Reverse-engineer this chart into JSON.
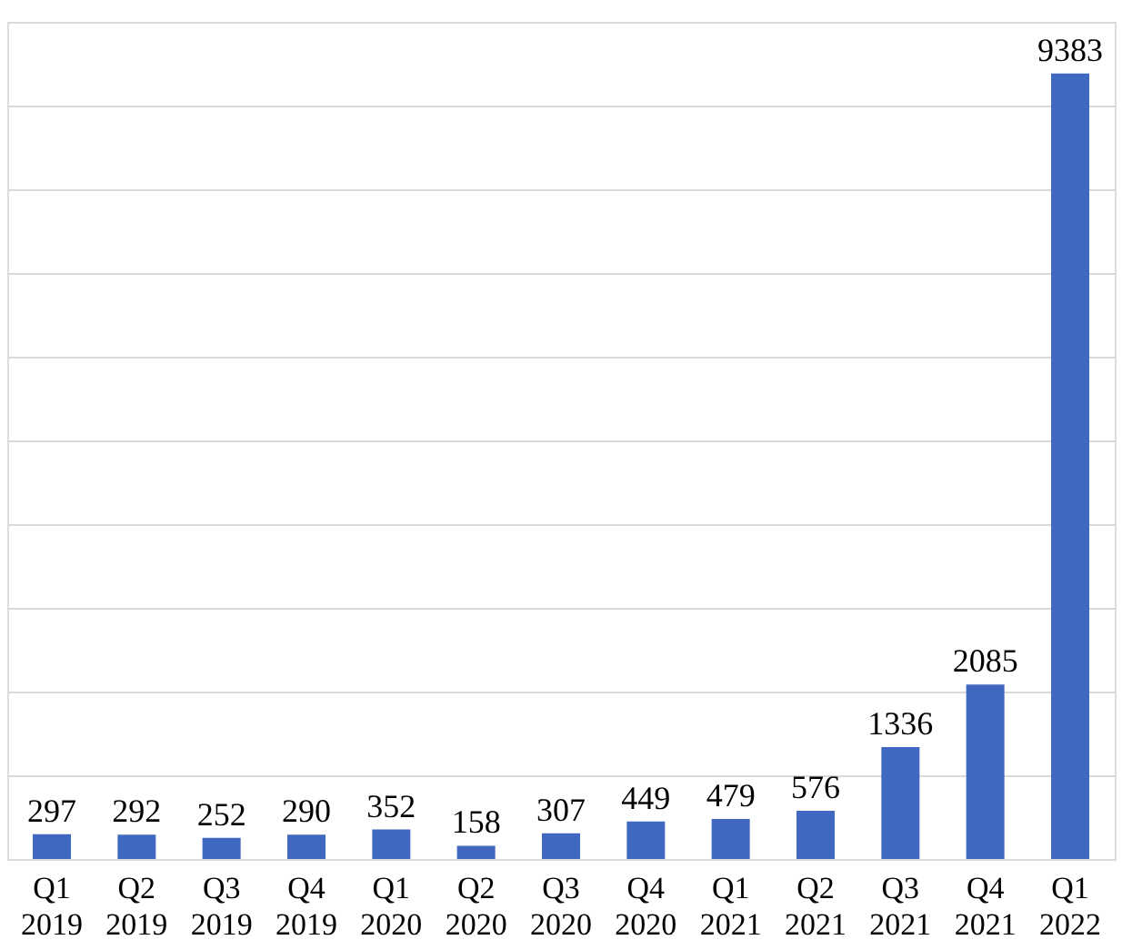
{
  "chart_data": {
    "type": "bar",
    "categories": [
      "Q1 2019",
      "Q2 2019",
      "Q3 2019",
      "Q4 2019",
      "Q1 2020",
      "Q2 2020",
      "Q3 2020",
      "Q4 2020",
      "Q1 2021",
      "Q2 2021",
      "Q3 2021",
      "Q4 2021",
      "Q1 2022"
    ],
    "values": [
      297,
      292,
      252,
      290,
      352,
      158,
      307,
      449,
      479,
      576,
      1336,
      2085,
      9383
    ],
    "color": "#4068c0",
    "ylim": [
      0,
      10000
    ],
    "yticks": [
      {
        "value": 0,
        "label": null
      },
      {
        "value": 1000,
        "label": null
      },
      {
        "value": 2000,
        "label": null
      },
      {
        "value": 3000,
        "label": null
      },
      {
        "value": 4000,
        "label": null
      },
      {
        "value": 5000,
        "label": null
      },
      {
        "value": 6000,
        "label": null
      },
      {
        "value": 7000,
        "label": null
      },
      {
        "value": 8000,
        "label": null
      },
      {
        "value": 9000,
        "label": null
      },
      {
        "value": 10000,
        "label": null
      }
    ],
    "grid": "y",
    "tick_labels": "x",
    "data_labels": true
  }
}
